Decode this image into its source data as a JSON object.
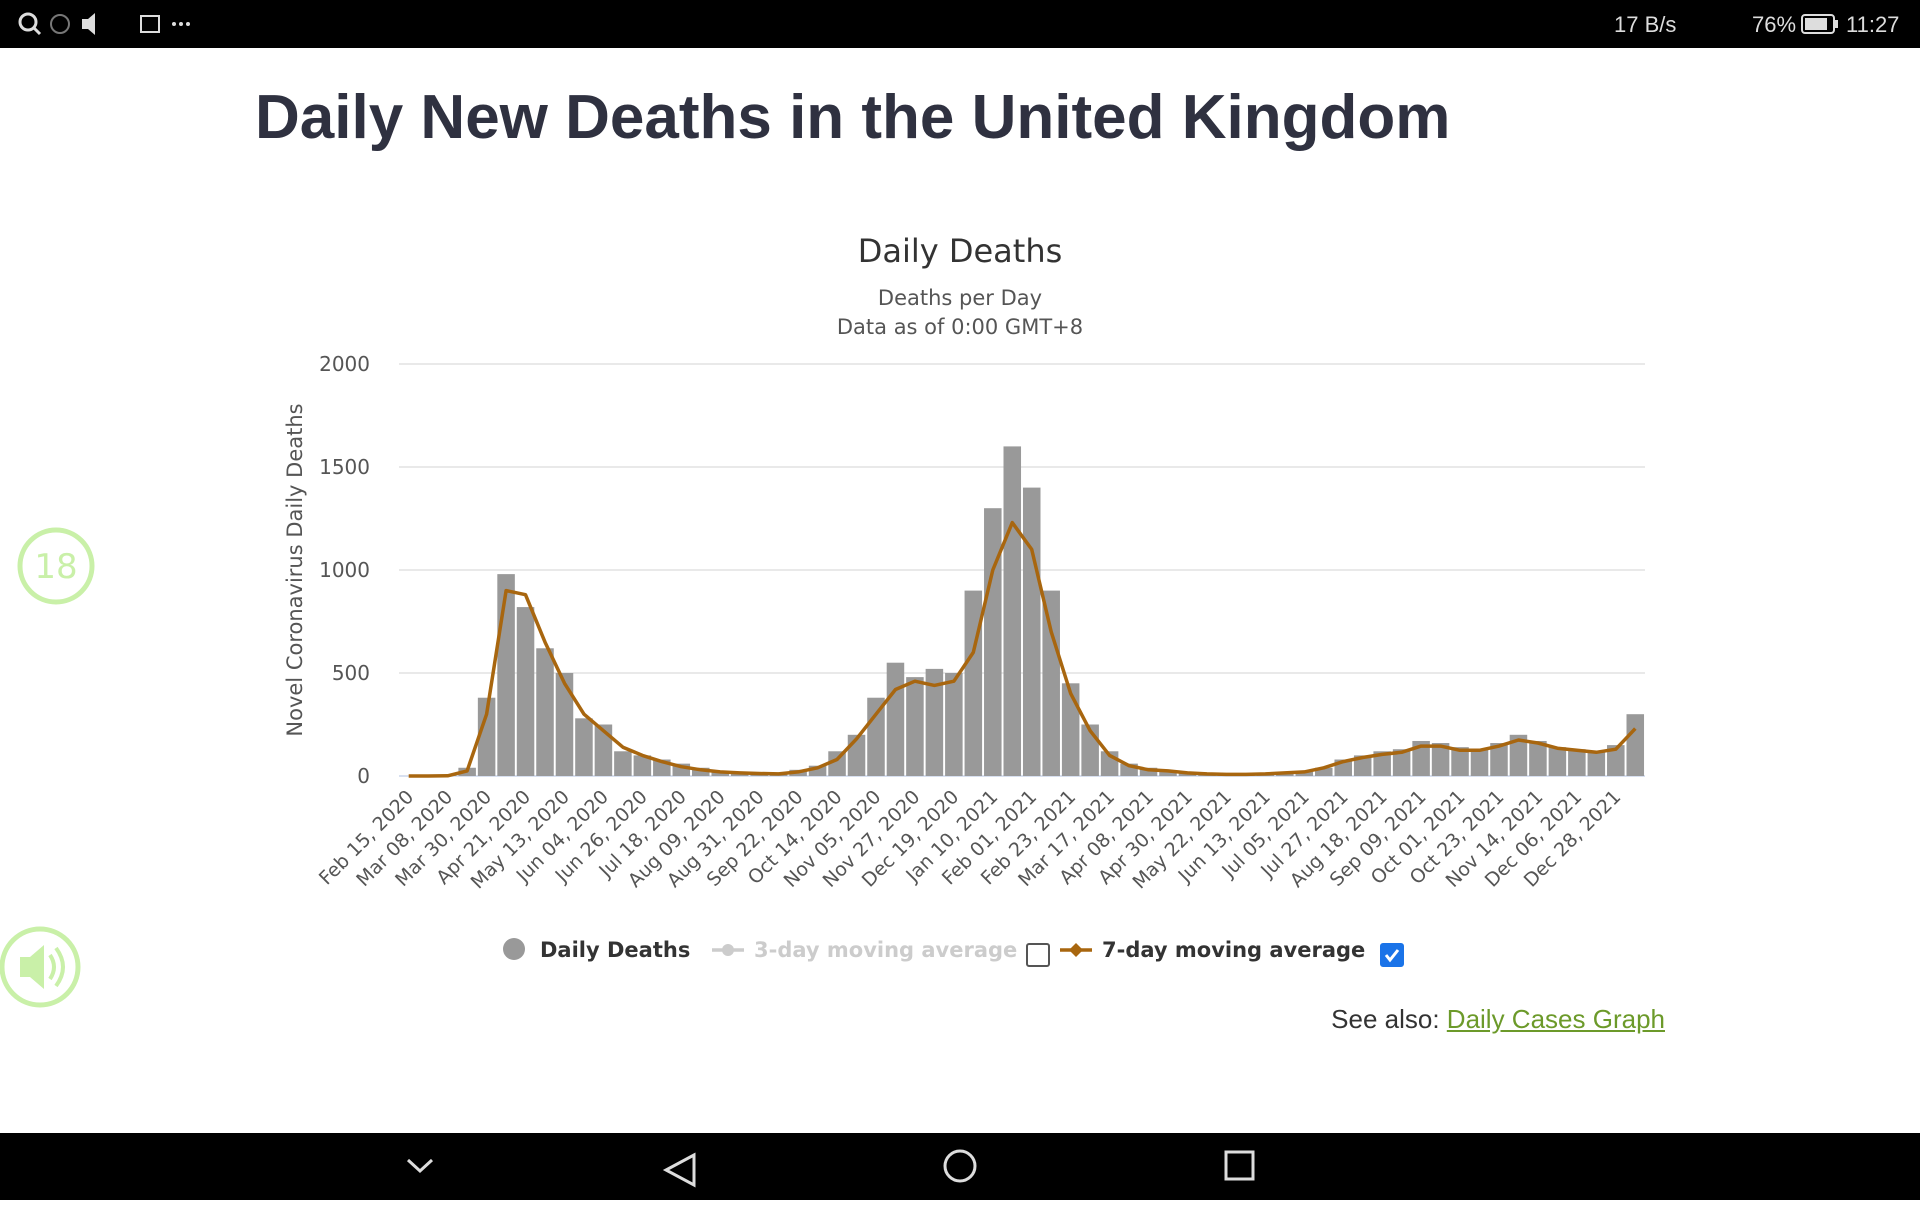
{
  "status_bar": {
    "network_speed": "17 B/s",
    "battery": "76%",
    "time": "11:27"
  },
  "page": {
    "heading": "Daily New Deaths in the United Kingdom",
    "see_also_label": "See also:",
    "see_also_link": "Daily Cases Graph"
  },
  "overlay": {
    "badge": "18"
  },
  "chart_data": {
    "type": "bar",
    "title": "Daily Deaths",
    "subtitle": [
      "Deaths per Day",
      "Data as of 0:00 GMT+8"
    ],
    "y_label": "Novel Coronavirus Daily Deaths",
    "categories": [
      "Feb 15, 2020",
      null,
      "Mar 08, 2020",
      null,
      "Mar 30, 2020",
      null,
      "Apr 21, 2020",
      null,
      "May 13, 2020",
      null,
      "Jun 04, 2020",
      null,
      "Jun 26, 2020",
      null,
      "Jul 18, 2020",
      null,
      "Aug 09, 2020",
      null,
      "Aug 31, 2020",
      null,
      "Sep 22, 2020",
      null,
      "Oct 14, 2020",
      null,
      "Nov 05, 2020",
      null,
      "Nov 27, 2020",
      null,
      "Dec 19, 2020",
      null,
      "Jan 10, 2021",
      null,
      "Feb 01, 2021",
      null,
      "Feb 23, 2021",
      null,
      "Mar 17, 2021",
      null,
      "Apr 08, 2021",
      null,
      "Apr 30, 2021",
      null,
      "May 22, 2021",
      null,
      "Jun 13, 2021",
      null,
      "Jul 05, 2021",
      null,
      "Jul 27, 2021",
      null,
      "Aug 18, 2021",
      null,
      "Sep 09, 2021",
      null,
      "Oct 01, 2021",
      null,
      "Oct 23, 2021",
      null,
      "Nov 14, 2021",
      null,
      "Dec 06, 2021",
      null,
      "Dec 28, 2021",
      null
    ],
    "series": [
      {
        "name": "Daily Deaths",
        "type": "bar",
        "color": "#999999",
        "values": [
          0,
          0,
          2,
          40,
          380,
          980,
          820,
          620,
          500,
          280,
          250,
          120,
          100,
          80,
          60,
          40,
          20,
          20,
          10,
          10,
          30,
          50,
          120,
          200,
          380,
          550,
          480,
          520,
          500,
          900,
          1300,
          1600,
          1400,
          900,
          450,
          250,
          120,
          60,
          40,
          25,
          15,
          10,
          10,
          8,
          10,
          15,
          20,
          40,
          80,
          100,
          120,
          130,
          170,
          160,
          140,
          130,
          160,
          200,
          170,
          140,
          130,
          120,
          150,
          300
        ]
      },
      {
        "name": "7-day moving average",
        "type": "line",
        "color": "#a8660f",
        "values": [
          0,
          0,
          1,
          25,
          300,
          900,
          880,
          650,
          450,
          300,
          220,
          140,
          100,
          70,
          45,
          30,
          20,
          15,
          12,
          10,
          20,
          40,
          80,
          180,
          300,
          420,
          460,
          440,
          460,
          600,
          1000,
          1230,
          1100,
          700,
          400,
          220,
          100,
          50,
          30,
          25,
          15,
          10,
          8,
          8,
          10,
          15,
          20,
          40,
          70,
          90,
          105,
          115,
          145,
          145,
          125,
          125,
          145,
          175,
          160,
          135,
          125,
          115,
          130,
          230
        ]
      }
    ],
    "hidden_series": [
      "3-day moving average"
    ],
    "ylim": [
      0,
      2000
    ],
    "yticks": [
      0,
      500,
      1000,
      1500,
      2000
    ],
    "grid": true,
    "legend": "bottom"
  }
}
